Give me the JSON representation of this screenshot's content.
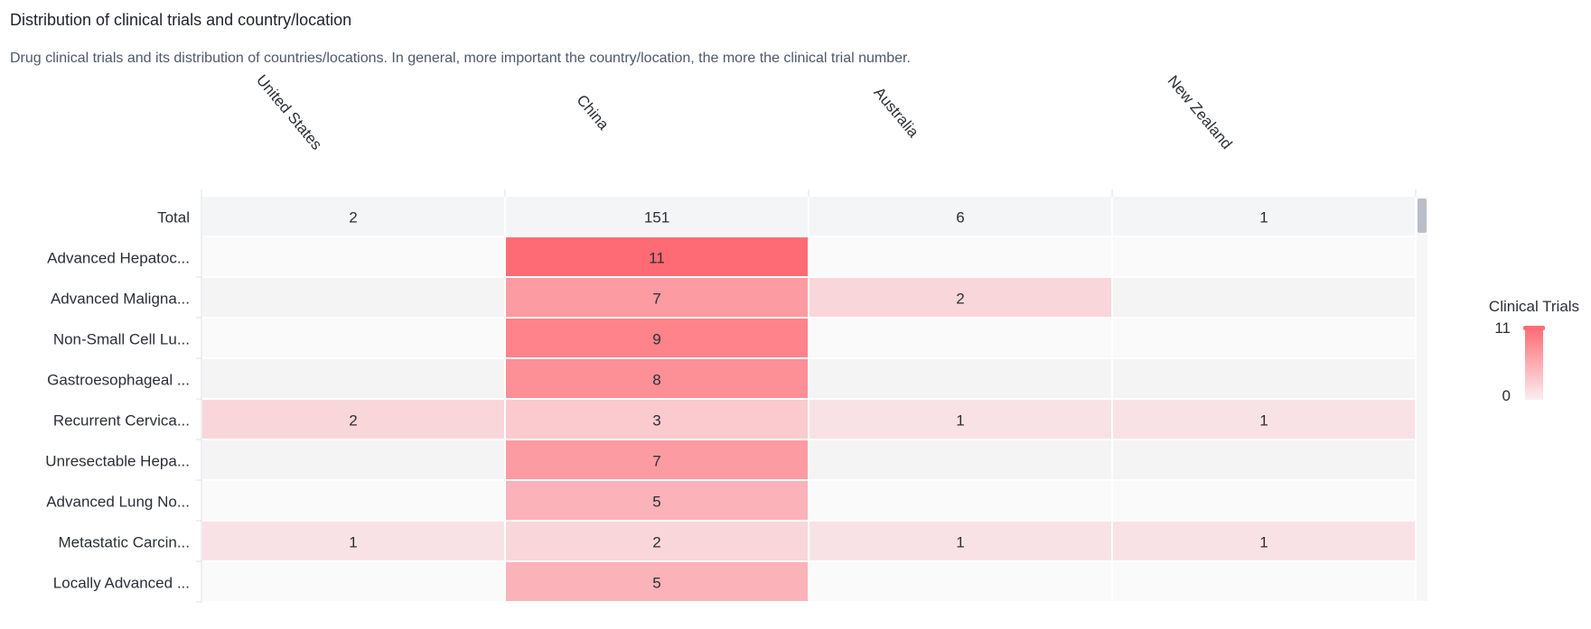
{
  "header": {
    "title": "Distribution of clinical trials and country/location",
    "subtitle": "Drug clinical trials and its distribution of countries/locations. In general, more important the country/location, the more the clinical trial number."
  },
  "chart_data": {
    "type": "heatmap",
    "columns": [
      "United States",
      "China",
      "Australia",
      "New Zealand"
    ],
    "total_row": {
      "label": "Total",
      "values": [
        2,
        151,
        6,
        1
      ]
    },
    "rows": [
      {
        "label": "Advanced Hepatoc...",
        "values": [
          null,
          11,
          null,
          null
        ]
      },
      {
        "label": "Advanced Maligna...",
        "values": [
          null,
          7,
          2,
          null
        ]
      },
      {
        "label": "Non-Small Cell Lu...",
        "values": [
          null,
          9,
          null,
          null
        ]
      },
      {
        "label": "Gastroesophageal ...",
        "values": [
          null,
          8,
          null,
          null
        ]
      },
      {
        "label": "Recurrent Cervica...",
        "values": [
          2,
          3,
          1,
          1
        ]
      },
      {
        "label": "Unresectable Hepa...",
        "values": [
          null,
          7,
          null,
          null
        ]
      },
      {
        "label": "Advanced Lung No...",
        "values": [
          null,
          5,
          null,
          null
        ]
      },
      {
        "label": "Metastatic Carcin...",
        "values": [
          1,
          2,
          1,
          1
        ]
      },
      {
        "label": "Locally Advanced ...",
        "values": [
          null,
          5,
          null,
          null
        ]
      }
    ],
    "legend": {
      "title": "Clinical Trials",
      "max_label": "11",
      "min_label": "0",
      "min": 0,
      "max": 11,
      "position": "right"
    },
    "colors": {
      "high": "#ff6b74",
      "low": "#f8eef0",
      "empty_odd": "#fafafa",
      "empty_even": "#f4f4f5",
      "total_bg": "#f4f5f7",
      "scrollbar": "#b9bec7"
    }
  }
}
